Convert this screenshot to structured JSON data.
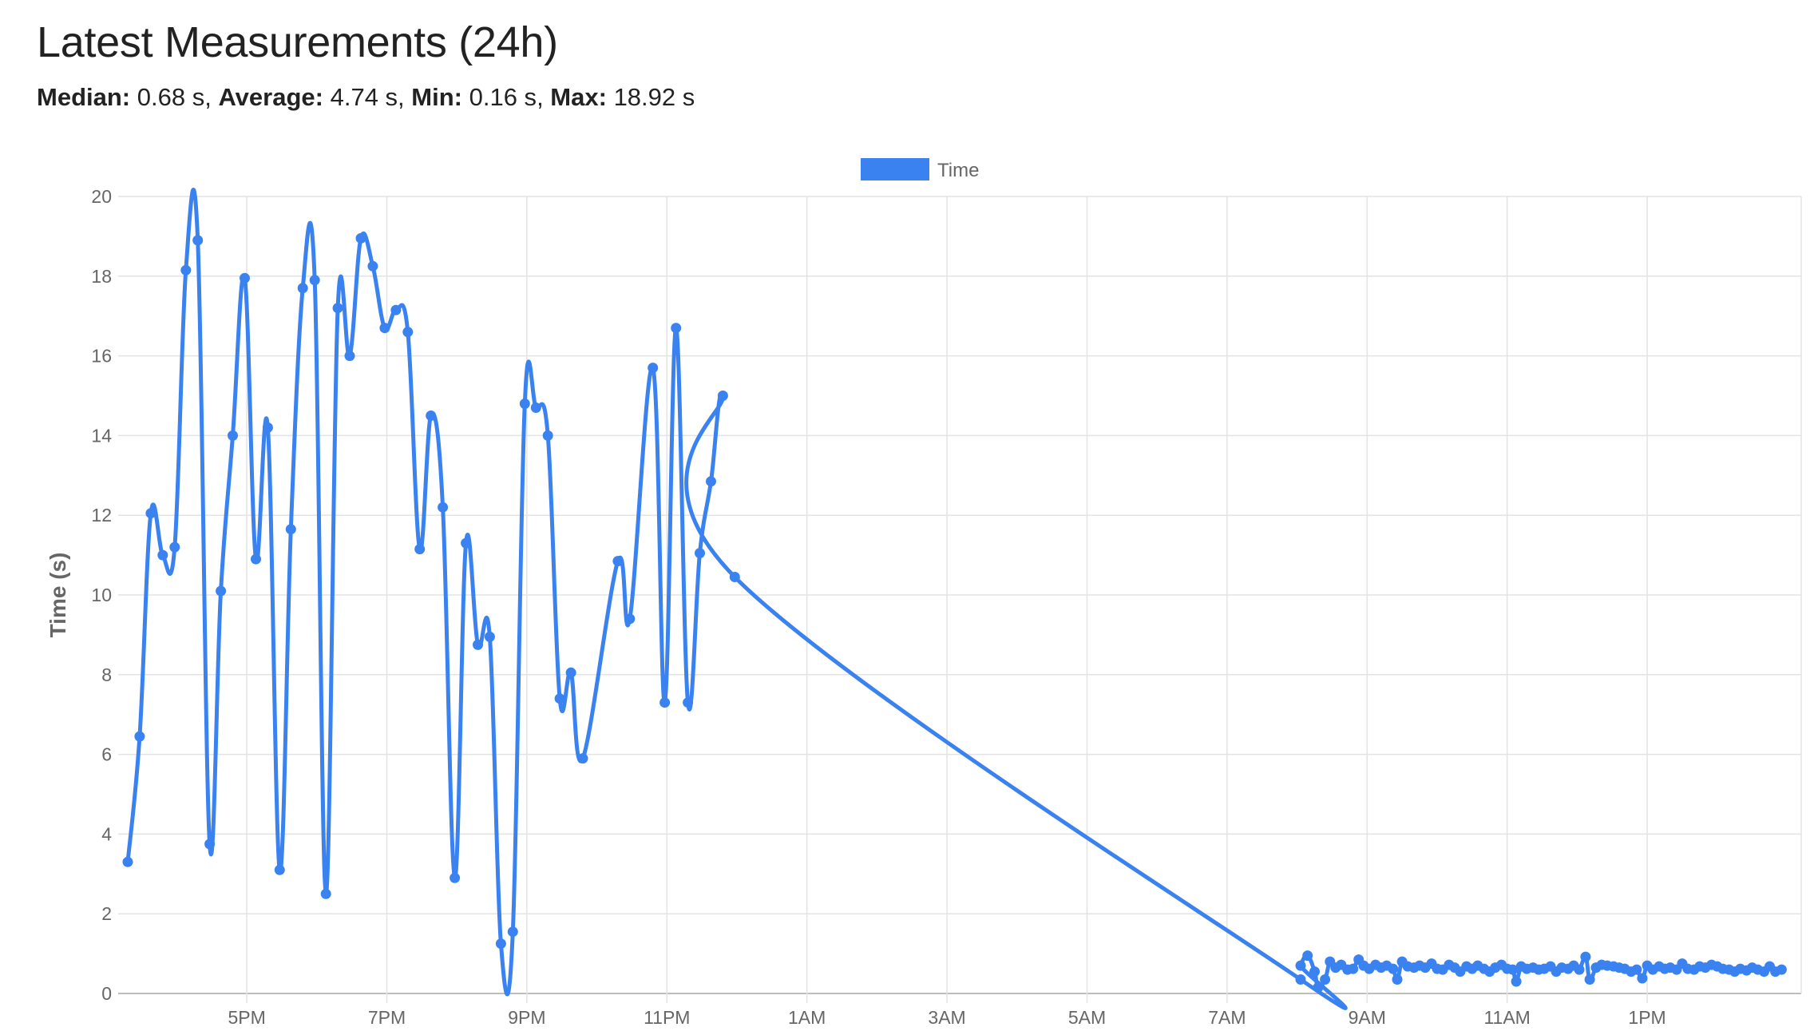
{
  "page": {
    "title": "Latest Measurements (24h)",
    "stats": [
      {
        "label": "Median:",
        "value": "0.68 s"
      },
      {
        "label": "Average:",
        "value": "4.74 s"
      },
      {
        "label": "Min:",
        "value": "0.16 s"
      },
      {
        "label": "Max:",
        "value": "18.92 s"
      }
    ]
  },
  "colors": {
    "series": "#3a82f0",
    "grid": "#e3e3e3",
    "tick_text": "#666666"
  },
  "chart_data": {
    "type": "line",
    "title": "",
    "xlabel": "",
    "ylabel": "Time (s)",
    "ylim": [
      0,
      20
    ],
    "yticks": [
      0,
      2,
      4,
      6,
      8,
      10,
      12,
      14,
      16,
      18,
      20
    ],
    "x_unit": "hour of day (values above 24 are the next day)",
    "xlim": [
      15.3,
      39.2
    ],
    "xticks": [
      {
        "x": 17,
        "label": "5PM"
      },
      {
        "x": 19,
        "label": "7PM"
      },
      {
        "x": 21,
        "label": "9PM"
      },
      {
        "x": 23,
        "label": "11PM"
      },
      {
        "x": 25,
        "label": "1AM"
      },
      {
        "x": 27,
        "label": "3AM"
      },
      {
        "x": 29,
        "label": "5AM"
      },
      {
        "x": 31,
        "label": "7AM"
      },
      {
        "x": 33,
        "label": "9AM"
      },
      {
        "x": 35,
        "label": "11AM"
      },
      {
        "x": 37,
        "label": "1PM"
      }
    ],
    "grid": true,
    "legend": {
      "position": "top-center"
    },
    "series": [
      {
        "name": "Time",
        "points": [
          [
            15.3,
            3.3
          ],
          [
            15.47,
            6.45
          ],
          [
            15.63,
            12.05
          ],
          [
            15.8,
            11.0
          ],
          [
            15.97,
            11.2
          ],
          [
            16.13,
            18.15
          ],
          [
            16.3,
            18.9
          ],
          [
            16.47,
            3.75
          ],
          [
            16.63,
            10.1
          ],
          [
            16.8,
            14.0
          ],
          [
            16.97,
            17.95
          ],
          [
            17.13,
            10.9
          ],
          [
            17.3,
            14.2
          ],
          [
            17.47,
            3.1
          ],
          [
            17.63,
            11.65
          ],
          [
            17.8,
            17.7
          ],
          [
            17.97,
            17.9
          ],
          [
            18.13,
            2.5
          ],
          [
            18.3,
            17.2
          ],
          [
            18.47,
            16.0
          ],
          [
            18.63,
            18.95
          ],
          [
            18.8,
            18.25
          ],
          [
            18.97,
            16.7
          ],
          [
            19.13,
            17.15
          ],
          [
            19.3,
            16.6
          ],
          [
            19.47,
            11.15
          ],
          [
            19.63,
            14.5
          ],
          [
            19.8,
            12.2
          ],
          [
            19.97,
            2.9
          ],
          [
            20.13,
            11.3
          ],
          [
            20.3,
            8.75
          ],
          [
            20.47,
            8.95
          ],
          [
            20.63,
            1.25
          ],
          [
            20.8,
            1.55
          ],
          [
            20.97,
            14.8
          ],
          [
            21.13,
            14.7
          ],
          [
            21.3,
            14.0
          ],
          [
            21.47,
            7.4
          ],
          [
            21.63,
            8.05
          ],
          [
            21.8,
            5.9
          ],
          [
            22.3,
            10.85
          ],
          [
            22.47,
            9.4
          ],
          [
            22.8,
            15.7
          ],
          [
            22.97,
            7.3
          ],
          [
            23.13,
            16.7
          ],
          [
            23.3,
            7.3
          ],
          [
            23.47,
            11.05
          ],
          [
            23.63,
            12.85
          ],
          [
            23.8,
            15.0
          ],
          [
            23.97,
            10.45
          ],
          [
            32.05,
            0.35
          ],
          [
            32.05,
            0.7
          ],
          [
            32.15,
            0.95
          ],
          [
            32.25,
            0.55
          ],
          [
            32.3,
            0.15
          ],
          [
            32.4,
            0.35
          ],
          [
            32.47,
            0.8
          ],
          [
            32.55,
            0.65
          ],
          [
            32.63,
            0.72
          ],
          [
            32.72,
            0.6
          ],
          [
            32.8,
            0.62
          ],
          [
            32.88,
            0.85
          ],
          [
            32.95,
            0.7
          ],
          [
            33.03,
            0.62
          ],
          [
            33.12,
            0.72
          ],
          [
            33.2,
            0.65
          ],
          [
            33.28,
            0.7
          ],
          [
            33.37,
            0.62
          ],
          [
            33.43,
            0.35
          ],
          [
            33.5,
            0.8
          ],
          [
            33.58,
            0.68
          ],
          [
            33.67,
            0.65
          ],
          [
            33.75,
            0.7
          ],
          [
            33.83,
            0.65
          ],
          [
            33.92,
            0.75
          ],
          [
            34.0,
            0.62
          ],
          [
            34.08,
            0.6
          ],
          [
            34.17,
            0.72
          ],
          [
            34.25,
            0.65
          ],
          [
            34.33,
            0.55
          ],
          [
            34.42,
            0.68
          ],
          [
            34.5,
            0.62
          ],
          [
            34.58,
            0.7
          ],
          [
            34.67,
            0.62
          ],
          [
            34.75,
            0.55
          ],
          [
            34.83,
            0.65
          ],
          [
            34.92,
            0.72
          ],
          [
            35.0,
            0.62
          ],
          [
            35.08,
            0.6
          ],
          [
            35.13,
            0.3
          ],
          [
            35.2,
            0.68
          ],
          [
            35.28,
            0.62
          ],
          [
            35.37,
            0.65
          ],
          [
            35.45,
            0.6
          ],
          [
            35.53,
            0.62
          ],
          [
            35.62,
            0.68
          ],
          [
            35.7,
            0.55
          ],
          [
            35.78,
            0.65
          ],
          [
            35.87,
            0.62
          ],
          [
            35.95,
            0.7
          ],
          [
            36.03,
            0.6
          ],
          [
            36.12,
            0.92
          ],
          [
            36.18,
            0.35
          ],
          [
            36.27,
            0.65
          ],
          [
            36.35,
            0.72
          ],
          [
            36.43,
            0.7
          ],
          [
            36.52,
            0.68
          ],
          [
            36.6,
            0.65
          ],
          [
            36.68,
            0.62
          ],
          [
            36.77,
            0.55
          ],
          [
            36.85,
            0.6
          ],
          [
            36.93,
            0.38
          ],
          [
            37.0,
            0.7
          ],
          [
            37.08,
            0.6
          ],
          [
            37.17,
            0.68
          ],
          [
            37.25,
            0.62
          ],
          [
            37.33,
            0.65
          ],
          [
            37.42,
            0.6
          ],
          [
            37.5,
            0.75
          ],
          [
            37.58,
            0.62
          ],
          [
            37.67,
            0.6
          ],
          [
            37.75,
            0.68
          ],
          [
            37.83,
            0.65
          ],
          [
            37.92,
            0.72
          ],
          [
            38.0,
            0.68
          ],
          [
            38.08,
            0.62
          ],
          [
            38.17,
            0.6
          ],
          [
            38.25,
            0.55
          ],
          [
            38.33,
            0.62
          ],
          [
            38.42,
            0.58
          ],
          [
            38.5,
            0.65
          ],
          [
            38.58,
            0.6
          ],
          [
            38.67,
            0.55
          ],
          [
            38.75,
            0.68
          ],
          [
            38.83,
            0.55
          ],
          [
            38.92,
            0.6
          ]
        ]
      }
    ]
  }
}
